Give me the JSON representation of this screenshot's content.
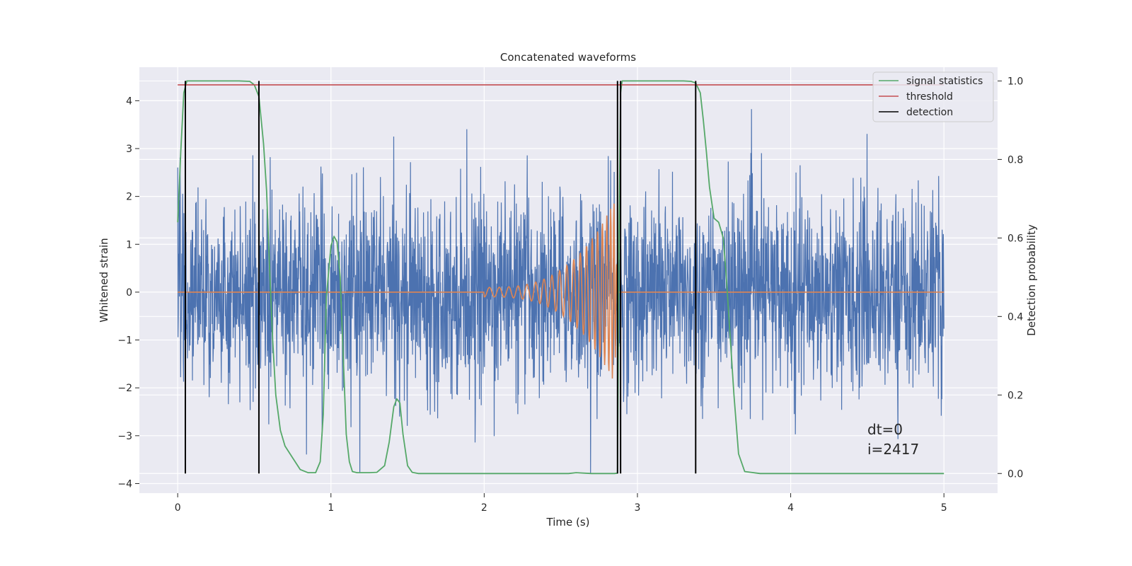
{
  "chart_data": {
    "type": "line",
    "title": "Concatenated waveforms",
    "xlabel": "Time (s)",
    "ylabel": "Whitened strain",
    "ylabel_right": "Detection probability",
    "xlim": [
      -0.25,
      5.35
    ],
    "ylim": [
      -4.2,
      4.7
    ],
    "ylim_right": [
      -0.05,
      1.035
    ],
    "x_ticks": [
      0,
      1,
      2,
      3,
      4,
      5
    ],
    "y_ticks": [
      -4,
      -3,
      -2,
      -1,
      0,
      1,
      2,
      3,
      4
    ],
    "y_ticks_right": [
      0.0,
      0.2,
      0.4,
      0.6,
      0.8,
      1.0
    ],
    "x_tick_labels": [
      "0",
      "1",
      "2",
      "3",
      "4",
      "5"
    ],
    "y_tick_labels": [
      "−4",
      "−3",
      "−2",
      "−1",
      "0",
      "1",
      "2",
      "3",
      "4"
    ],
    "y_tick_labels_right": [
      "0.0",
      "0.2",
      "0.4",
      "0.6",
      "0.8",
      "1.0"
    ],
    "grid": true,
    "legend_position": "top-right",
    "colors": {
      "strain": "#4c72b0",
      "template": "#dd8452",
      "signal_statistics": "#55a868",
      "threshold": "#c44e52",
      "detection": "#000000",
      "background": "#eaeaf2"
    },
    "series": [
      {
        "name": "signal statistics",
        "axis": "right",
        "x": [
          0.0,
          0.02,
          0.04,
          0.06,
          0.1,
          0.2,
          0.3,
          0.4,
          0.47,
          0.5,
          0.53,
          0.56,
          0.58,
          0.6,
          0.62,
          0.64,
          0.67,
          0.7,
          0.75,
          0.8,
          0.85,
          0.9,
          0.93,
          0.95,
          0.97,
          1.0,
          1.02,
          1.04,
          1.06,
          1.08,
          1.1,
          1.12,
          1.14,
          1.17,
          1.2,
          1.25,
          1.3,
          1.35,
          1.38,
          1.41,
          1.43,
          1.45,
          1.47,
          1.5,
          1.53,
          1.57,
          1.6,
          1.7,
          1.8,
          2.0,
          2.2,
          2.4,
          2.55,
          2.6,
          2.7,
          2.8,
          2.85,
          2.87,
          2.88,
          2.89,
          2.9,
          2.92,
          3.0,
          3.1,
          3.2,
          3.3,
          3.35,
          3.38,
          3.41,
          3.43,
          3.45,
          3.47,
          3.5,
          3.53,
          3.56,
          3.58,
          3.6,
          3.63,
          3.66,
          3.7,
          3.8,
          4.0,
          4.5,
          5.0
        ],
        "y": [
          0.64,
          0.82,
          0.97,
          1.0,
          1.0,
          1.0,
          1.0,
          1.0,
          0.999,
          0.99,
          0.96,
          0.84,
          0.72,
          0.52,
          0.34,
          0.2,
          0.11,
          0.07,
          0.04,
          0.01,
          0.002,
          0.002,
          0.03,
          0.15,
          0.45,
          0.58,
          0.604,
          0.59,
          0.5,
          0.3,
          0.1,
          0.03,
          0.005,
          0.002,
          0.002,
          0.002,
          0.003,
          0.02,
          0.08,
          0.17,
          0.19,
          0.18,
          0.1,
          0.02,
          0.003,
          0.0,
          0.0,
          0.0,
          0.0,
          0.0,
          0.0,
          0.0,
          0.0,
          0.002,
          0.0,
          0.0,
          0.0,
          0.001,
          0.6,
          0.97,
          1.0,
          1.0,
          1.0,
          1.0,
          1.0,
          1.0,
          0.999,
          0.995,
          0.97,
          0.9,
          0.82,
          0.73,
          0.65,
          0.64,
          0.6,
          0.5,
          0.38,
          0.2,
          0.05,
          0.005,
          0.0,
          0.0,
          0.0,
          0.0
        ]
      },
      {
        "name": "threshold",
        "axis": "right",
        "x": [
          0.0,
          5.0
        ],
        "y": [
          0.99,
          0.99
        ]
      },
      {
        "name": "detection",
        "axis": "right",
        "segments_x": [
          0.05,
          0.53,
          2.87,
          2.89,
          3.38
        ],
        "y_range": [
          0.0,
          1.0
        ]
      },
      {
        "axis": "left",
        "description": "template waveform (chirp)",
        "x": [
          0.0,
          2.0,
          2.85,
          5.0
        ],
        "y_envelope": [
          0.0,
          0.1,
          1.9,
          0.0
        ]
      },
      {
        "axis": "left",
        "description": "whitened strain noise",
        "x_range": [
          0.0,
          5.0
        ],
        "y_range": [
          -3.8,
          4.3
        ],
        "typical_std": 1.0
      }
    ],
    "annotations": {
      "dt": "dt=0",
      "i": "i=2417"
    }
  }
}
